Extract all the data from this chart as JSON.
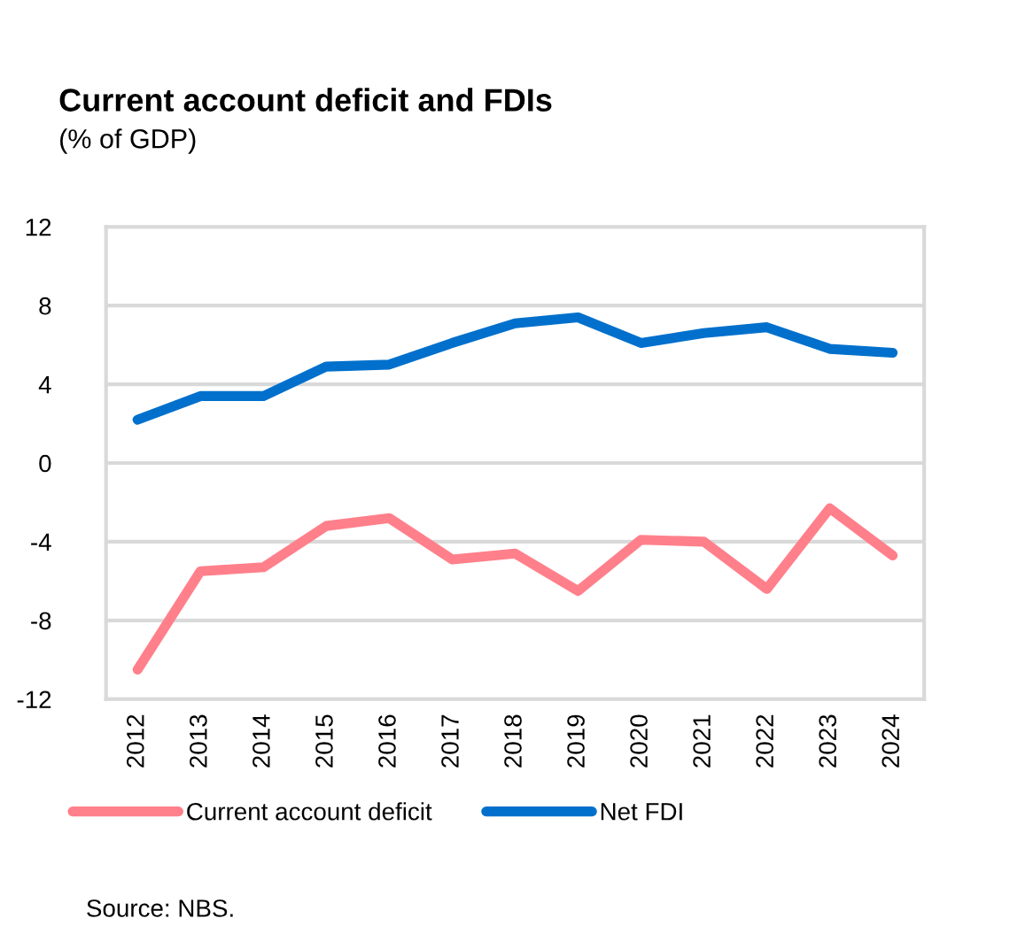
{
  "chart_data": {
    "type": "line",
    "title": "Current account deficit and FDIs",
    "subtitle": "(% of GDP)",
    "categories": [
      "2012",
      "2013",
      "2014",
      "2015",
      "2016",
      "2017",
      "2018",
      "2019",
      "2020",
      "2021",
      "2022",
      "2023",
      "2024"
    ],
    "series": [
      {
        "name": "Current account deficit",
        "color": "#ff808b",
        "values": [
          -10.5,
          -5.5,
          -5.3,
          -3.2,
          -2.8,
          -4.9,
          -4.6,
          -6.5,
          -3.9,
          -4.0,
          -6.4,
          -2.3,
          -4.7
        ]
      },
      {
        "name": "Net FDI",
        "color": "#0070cc",
        "values": [
          2.2,
          3.4,
          3.4,
          4.9,
          5.0,
          6.1,
          7.1,
          7.4,
          6.1,
          6.6,
          6.9,
          5.8,
          5.6
        ]
      }
    ],
    "ylim": [
      -12,
      12
    ],
    "yticks": [
      -12,
      -8,
      -4,
      0,
      4,
      8,
      12
    ],
    "grid": "y",
    "legend": "bottom",
    "marker": "none",
    "line_style": "solid",
    "annotations": [
      "Source: NBS."
    ]
  }
}
